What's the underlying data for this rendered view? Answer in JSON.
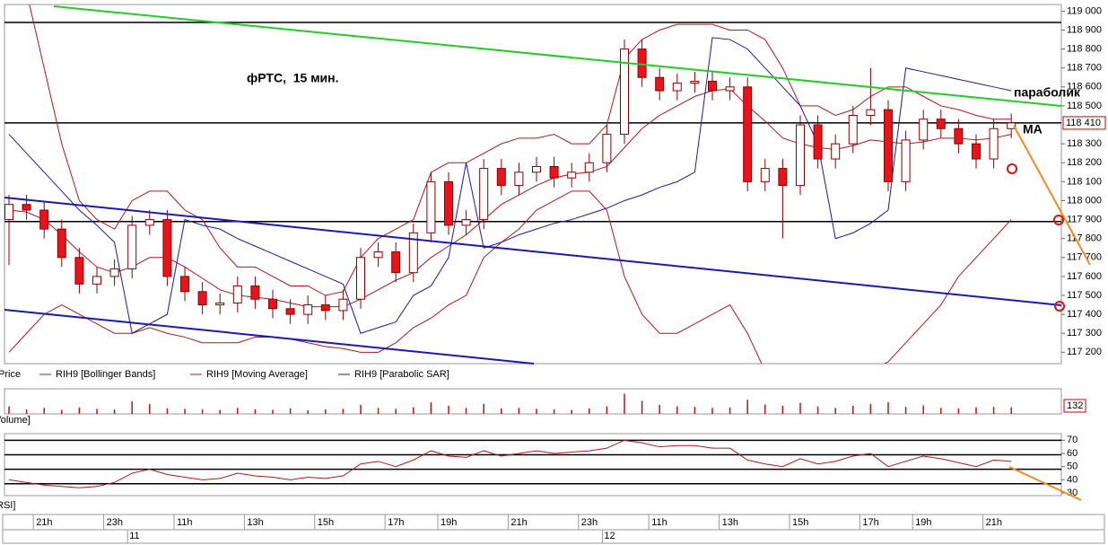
{
  "chart_data": {
    "type": "candlestick",
    "title": "фРТС,  15 мин.",
    "annotations": [
      "параболик",
      "MA"
    ],
    "candle_name": "Price",
    "up_color": "#ffffff",
    "down_color": "#e8141c",
    "edge_color": "#8b0000",
    "categories": [
      null,
      null,
      "21h",
      null,
      null,
      null,
      "23h",
      null,
      null,
      null,
      "11h",
      null,
      null,
      null,
      "13h",
      null,
      null,
      null,
      "15h",
      null,
      null,
      null,
      "17h",
      null,
      null,
      "19h",
      null,
      null,
      null,
      "21h",
      null,
      null,
      null,
      "23h",
      null,
      null,
      null,
      "11h",
      null,
      null,
      null,
      "13h",
      null,
      null,
      null,
      "15h",
      null,
      null,
      null,
      "17h",
      null,
      null,
      "19h",
      null,
      null,
      null,
      "21h",
      null
    ],
    "date_labels": [
      null,
      null,
      null,
      null,
      null,
      null,
      null,
      "11",
      null,
      null,
      null,
      null,
      null,
      null,
      null,
      null,
      null,
      null,
      null,
      null,
      null,
      null,
      null,
      null,
      null,
      null,
      null,
      null,
      null,
      null,
      null,
      null,
      null,
      null,
      "12",
      null,
      null,
      null,
      null,
      null,
      null,
      null,
      null,
      null,
      null,
      null,
      null,
      null,
      null,
      null,
      null,
      null,
      null,
      null,
      null,
      null,
      null,
      null
    ],
    "open": [
      117900,
      117980,
      117950,
      117850,
      117700,
      117560,
      117600,
      117640,
      117870,
      117900,
      117600,
      117520,
      117450,
      117460,
      117550,
      117480,
      117430,
      117400,
      117450,
      117420,
      117480,
      117700,
      117730,
      117620,
      117830,
      118100,
      117870,
      117900,
      118170,
      118080,
      118150,
      118180,
      118120,
      118150,
      118200,
      118350,
      118800,
      118650,
      118580,
      118620,
      118630,
      118580,
      118600,
      118100,
      118170,
      118080,
      118400,
      118220,
      118300,
      118450,
      118480,
      118100,
      118320,
      118430,
      118380,
      118300,
      118220,
      118380
    ],
    "high": [
      118030,
      118030,
      118000,
      117900,
      117750,
      117650,
      117690,
      117920,
      117950,
      117950,
      117650,
      117570,
      117510,
      117600,
      117600,
      117530,
      117480,
      117500,
      117500,
      117530,
      117750,
      117780,
      117780,
      117880,
      118150,
      118150,
      117950,
      118220,
      118220,
      118200,
      118230,
      118230,
      118200,
      118250,
      118400,
      118850,
      118850,
      118700,
      118670,
      118680,
      118680,
      118650,
      118650,
      118220,
      118220,
      118450,
      118450,
      118350,
      118500,
      118700,
      118530,
      118370,
      118480,
      118480,
      118430,
      118350,
      118430,
      118460
    ],
    "low": [
      117660,
      117900,
      117800,
      117650,
      117510,
      117510,
      117550,
      117590,
      117820,
      117550,
      117470,
      117400,
      117400,
      117410,
      117430,
      117380,
      117350,
      117350,
      117370,
      117370,
      117430,
      117650,
      117570,
      117570,
      117780,
      117820,
      117820,
      117850,
      118030,
      118030,
      118100,
      118070,
      118070,
      118100,
      118150,
      118300,
      118600,
      118530,
      118530,
      118570,
      118530,
      118530,
      118050,
      118050,
      117800,
      118030,
      118170,
      118170,
      118250,
      118400,
      118050,
      118050,
      118270,
      118330,
      118250,
      118170,
      118170,
      118330
    ],
    "close": [
      117980,
      117950,
      117850,
      117700,
      117560,
      117600,
      117640,
      117870,
      117900,
      117600,
      117520,
      117450,
      117460,
      117550,
      117480,
      117430,
      117400,
      117450,
      117420,
      117480,
      117700,
      117730,
      117620,
      117830,
      118100,
      117870,
      117900,
      118170,
      118080,
      118150,
      118180,
      118120,
      118150,
      118200,
      118350,
      118800,
      118650,
      118580,
      118620,
      118630,
      118580,
      118600,
      118100,
      118170,
      118080,
      118400,
      118220,
      118300,
      118450,
      118480,
      118100,
      118320,
      118430,
      118380,
      118300,
      118220,
      118380,
      118410
    ],
    "series": [
      {
        "name": "RIH9 [Bollinger Bands]",
        "color": "#b01818",
        "upper": [
          119300,
          119100,
          118700,
          118300,
          118000,
          117900,
          117850,
          118000,
          118050,
          118050,
          117950,
          117900,
          117750,
          117650,
          117650,
          117600,
          117550,
          117550,
          117500,
          117520,
          117700,
          117800,
          117850,
          117900,
          118150,
          118200,
          118200,
          118250,
          118300,
          118330,
          118330,
          118350,
          118300,
          118300,
          118400,
          118750,
          118850,
          118900,
          118930,
          118930,
          118930,
          118900,
          118900,
          118850,
          118700,
          118500,
          118500,
          118450,
          118480,
          118550,
          118600,
          118600,
          118550,
          118500,
          118480,
          118450,
          118430,
          118430
        ],
        "lower": [
          117200,
          117300,
          117400,
          117450,
          117400,
          117350,
          117300,
          117300,
          117330,
          117300,
          117280,
          117250,
          117250,
          117250,
          117280,
          117280,
          117270,
          117250,
          117230,
          117220,
          117200,
          117200,
          117250,
          117330,
          117380,
          117450,
          117500,
          117700,
          117780,
          117850,
          117950,
          118000,
          118050,
          118050,
          117950,
          117600,
          117400,
          117300,
          117300,
          117350,
          117400,
          117450,
          117300,
          117100,
          117050,
          117050,
          117100,
          117100,
          117100,
          117100,
          117150,
          117250,
          117350,
          117450,
          117600,
          117700,
          117800,
          117900
        ]
      },
      {
        "name": "RIH9 [Moving Average]",
        "color": "#b01818",
        "values": [
          117950,
          117940,
          117900,
          117820,
          117730,
          117650,
          117620,
          117650,
          117700,
          117700,
          117650,
          117590,
          117530,
          117500,
          117490,
          117480,
          117460,
          117440,
          117440,
          117440,
          117480,
          117530,
          117580,
          117620,
          117700,
          117760,
          117820,
          117900,
          117980,
          118030,
          118080,
          118120,
          118140,
          118150,
          118180,
          118280,
          118380,
          118450,
          118500,
          118550,
          118580,
          118590,
          118500,
          118420,
          118330,
          118300,
          118280,
          118270,
          118290,
          118320,
          118310,
          118300,
          118310,
          118330,
          118330,
          118320,
          118330,
          118350
        ]
      },
      {
        "name": "RIH9 [Parabolic SAR]",
        "color": "#1a1a9c",
        "values": [
          118350,
          118250,
          118150,
          118050,
          117950,
          117870,
          117780,
          117300,
          117350,
          117400,
          117900,
          117870,
          117850,
          117800,
          117760,
          117720,
          117680,
          117640,
          117600,
          117560,
          117300,
          117330,
          117360,
          117500,
          117550,
          117700,
          118200,
          117750,
          117780,
          117820,
          117850,
          117880,
          117900,
          117930,
          117960,
          118000,
          118030,
          118070,
          118100,
          118150,
          118860,
          118850,
          118800,
          118700,
          118600,
          118500,
          118300,
          117800,
          117830,
          117880,
          117950,
          118700,
          118680,
          118660,
          118640,
          118620,
          118600,
          118580
        ]
      }
    ],
    "ylim": [
      117140,
      119035
    ],
    "yticks": [
      {
        "value": 119000,
        "label": "119 000"
      },
      {
        "value": 118900,
        "label": "118 900"
      },
      {
        "value": 118800,
        "label": "118 800"
      },
      {
        "value": 118700,
        "label": "118 700"
      },
      {
        "value": 118600,
        "label": "118 600"
      },
      {
        "value": 118500,
        "label": "118 500"
      },
      {
        "value": 118300,
        "label": "118 300"
      },
      {
        "value": 118200,
        "label": "118 200"
      },
      {
        "value": 118100,
        "label": "118 100"
      },
      {
        "value": 118000,
        "label": "118 000"
      },
      {
        "value": 117900,
        "label": "117 900"
      },
      {
        "value": 117800,
        "label": "117 800"
      },
      {
        "value": 117700,
        "label": "117 700"
      },
      {
        "value": 117600,
        "label": "117 600"
      },
      {
        "value": 117500,
        "label": "117 500"
      },
      {
        "value": 117400,
        "label": "117 400"
      },
      {
        "value": 117300,
        "label": "117 300"
      },
      {
        "value": 117200,
        "label": "117 200"
      }
    ],
    "levels": [
      118940,
      118410,
      117890
    ],
    "last_price": {
      "value": 118410,
      "label": "118 410"
    },
    "volume": {
      "label": "Volume]",
      "color": "#b01818",
      "ylim": [
        0,
        500
      ],
      "values": [
        150,
        90,
        120,
        80,
        130,
        100,
        90,
        250,
        200,
        110,
        100,
        90,
        80,
        120,
        90,
        80,
        110,
        70,
        90,
        100,
        180,
        120,
        100,
        130,
        230,
        160,
        120,
        200,
        110,
        120,
        100,
        90,
        80,
        110,
        150,
        400,
        260,
        180,
        150,
        140,
        120,
        130,
        280,
        190,
        160,
        220,
        150,
        120,
        160,
        200,
        230,
        140,
        170,
        120,
        110,
        130,
        140,
        132
      ]
    },
    "rsi": {
      "label": "RSI]",
      "color": "#b01818",
      "ylim": [
        28,
        75
      ],
      "yticks": [
        70,
        60,
        50,
        40,
        30
      ],
      "levels": [
        70,
        59,
        48,
        37
      ],
      "values": [
        40,
        38,
        36,
        35,
        34,
        35,
        38,
        45,
        48,
        44,
        42,
        40,
        41,
        45,
        43,
        42,
        40,
        42,
        41,
        43,
        52,
        54,
        50,
        55,
        62,
        58,
        57,
        62,
        58,
        60,
        62,
        60,
        61,
        62,
        64,
        70,
        68,
        65,
        66,
        66,
        64,
        64,
        55,
        52,
        50,
        56,
        52,
        54,
        58,
        60,
        50,
        54,
        58,
        56,
        53,
        50,
        55,
        54
      ]
    }
  }
}
